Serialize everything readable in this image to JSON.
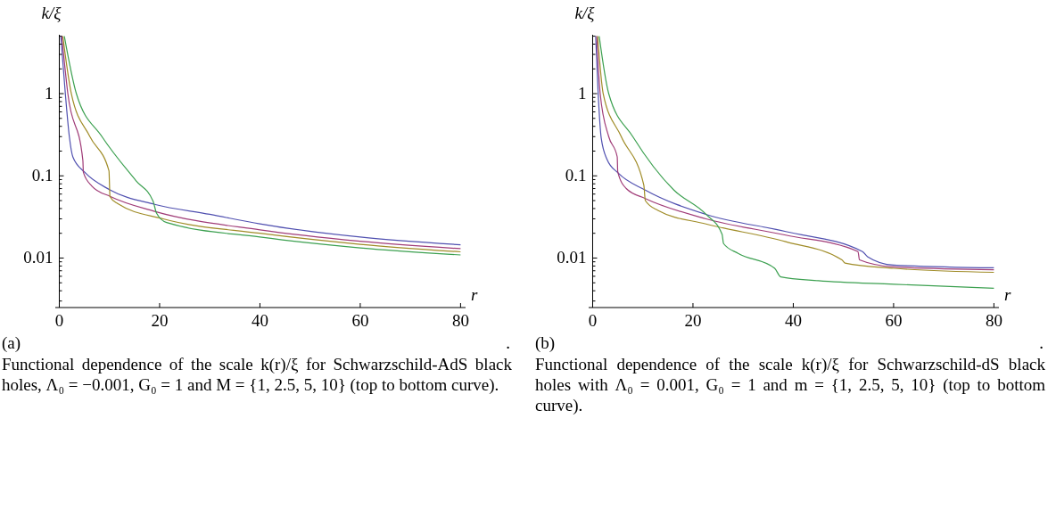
{
  "chart_data": [
    {
      "type": "line",
      "xlabel": "r",
      "ylabel": "k/ξ",
      "log": "y",
      "xlim": [
        -0.8,
        81
      ],
      "ylim": [
        0.0025,
        5.2
      ],
      "xticks": [
        0,
        20,
        40,
        60,
        80
      ],
      "yticks": [
        {
          "value": 0.003,
          "label": null
        },
        {
          "value": 0.004,
          "label": null
        },
        {
          "value": 0.005,
          "label": null
        },
        {
          "value": 0.006,
          "label": null
        },
        {
          "value": 0.007,
          "label": null
        },
        {
          "value": 0.008,
          "label": null
        },
        {
          "value": 0.009,
          "label": null
        },
        0.01,
        {
          "value": 0.02,
          "label": null
        },
        {
          "value": 0.03,
          "label": null
        },
        {
          "value": 0.04,
          "label": null
        },
        {
          "value": 0.05,
          "label": null
        },
        {
          "value": 0.06,
          "label": null
        },
        {
          "value": 0.07,
          "label": null
        },
        {
          "value": 0.08,
          "label": null
        },
        {
          "value": 0.09,
          "label": null
        },
        0.1,
        {
          "value": 0.2,
          "label": null
        },
        {
          "value": 0.3,
          "label": null
        },
        {
          "value": 0.4,
          "label": null
        },
        {
          "value": 0.5,
          "label": null
        },
        {
          "value": 0.6,
          "label": null
        },
        {
          "value": 0.7,
          "label": null
        },
        {
          "value": 0.8,
          "label": null
        },
        {
          "value": 0.9,
          "label": null
        },
        1,
        {
          "value": 2,
          "label": null
        },
        {
          "value": 3,
          "label": null
        },
        {
          "value": 4,
          "label": null
        },
        {
          "value": 5,
          "label": null
        }
      ],
      "grid": false,
      "series": [
        {
          "color": "#5050b0",
          "x": [
            0.3,
            1.2,
            2,
            2.7,
            5.1,
            10,
            19,
            30,
            40,
            60,
            80
          ],
          "values": [
            5,
            1,
            0.3,
            0.17,
            0.11,
            0.068,
            0.045,
            0.034,
            0.026,
            0.018,
            0.0145
          ]
        },
        {
          "color": "#a03c78",
          "x": [
            0.5,
            1.7,
            4.7,
            4.8,
            6.5,
            10.2,
            19,
            40,
            60,
            80
          ],
          "values": [
            5,
            1,
            0.154,
            0.11,
            0.075,
            0.056,
            0.037,
            0.022,
            0.016,
            0.013
          ]
        },
        {
          "color": "#a08c28",
          "x": [
            0.7,
            2.4,
            6.1,
            9.9,
            10.1,
            11.6,
            20.7,
            40,
            60,
            80
          ],
          "values": [
            5,
            1,
            0.3,
            0.115,
            0.056,
            0.046,
            0.03,
            0.02,
            0.0147,
            0.0119
          ]
        },
        {
          "color": "#3ca050",
          "x": [
            1,
            3.4,
            8.5,
            15.3,
            18.7,
            19.4,
            21.4,
            40,
            60,
            80
          ],
          "values": [
            5,
            1,
            0.3,
            0.087,
            0.049,
            0.035,
            0.027,
            0.018,
            0.0133,
            0.0109
          ]
        }
      ],
      "annotations": [
        "(a)",
        ".",
        "Functional dependence of the scale k(r)/ξ for Schwarzschild-AdS black holes, Λ₀ = −0.001, G₀ = 1 and M = {1, 2.5, 5, 10} (top to bottom curve)."
      ]
    },
    {
      "type": "line",
      "xlabel": "r",
      "ylabel": "k/ξ",
      "log": "y",
      "xlim": [
        -0.8,
        81
      ],
      "ylim": [
        0.0025,
        5.2
      ],
      "xticks": [
        0,
        20,
        40,
        60,
        80
      ],
      "yticks": [
        {
          "value": 0.003,
          "label": null
        },
        {
          "value": 0.004,
          "label": null
        },
        {
          "value": 0.005,
          "label": null
        },
        {
          "value": 0.006,
          "label": null
        },
        {
          "value": 0.007,
          "label": null
        },
        {
          "value": 0.008,
          "label": null
        },
        {
          "value": 0.009,
          "label": null
        },
        0.01,
        {
          "value": 0.02,
          "label": null
        },
        {
          "value": 0.03,
          "label": null
        },
        {
          "value": 0.04,
          "label": null
        },
        {
          "value": 0.05,
          "label": null
        },
        {
          "value": 0.06,
          "label": null
        },
        {
          "value": 0.07,
          "label": null
        },
        {
          "value": 0.08,
          "label": null
        },
        {
          "value": 0.09,
          "label": null
        },
        0.1,
        {
          "value": 0.2,
          "label": null
        },
        {
          "value": 0.3,
          "label": null
        },
        {
          "value": 0.4,
          "label": null
        },
        {
          "value": 0.5,
          "label": null
        },
        {
          "value": 0.6,
          "label": null
        },
        {
          "value": 0.7,
          "label": null
        },
        {
          "value": 0.8,
          "label": null
        },
        {
          "value": 0.9,
          "label": null
        },
        1,
        {
          "value": 2,
          "label": null
        },
        {
          "value": 3,
          "label": null
        },
        {
          "value": 4,
          "label": null
        },
        {
          "value": 5,
          "label": null
        }
      ],
      "grid": false,
      "series": [
        {
          "color": "#5050b0",
          "x": [
            0.6,
            1.1,
            1.7,
            2.9,
            5.1,
            10.5,
            22.6,
            38.5,
            53.8,
            54.8,
            60,
            80
          ],
          "values": [
            5,
            1,
            0.29,
            0.157,
            0.108,
            0.067,
            0.034,
            0.021,
            0.012,
            0.0104,
            0.0082,
            0.0076
          ]
        },
        {
          "color": "#a03c78",
          "x": [
            0.8,
            1.5,
            3.2,
            4.9,
            5,
            6.7,
            10.5,
            22.6,
            38.5,
            52.9,
            53.2,
            60,
            80
          ],
          "values": [
            5,
            1,
            0.3,
            0.17,
            0.112,
            0.07,
            0.053,
            0.03,
            0.019,
            0.012,
            0.0095,
            0.0078,
            0.0072
          ]
        },
        {
          "color": "#a08c28",
          "x": [
            1,
            2.1,
            5.7,
            10.2,
            10.5,
            13,
            22.6,
            38.5,
            49.7,
            50.3,
            60,
            80
          ],
          "values": [
            5,
            1,
            0.3,
            0.077,
            0.05,
            0.038,
            0.026,
            0.0158,
            0.0095,
            0.0087,
            0.0075,
            0.0067
          ]
        },
        {
          "color": "#3ca050",
          "x": [
            1.3,
            3.2,
            8,
            16.2,
            22.6,
            25.8,
            26.1,
            29,
            36.3,
            37.5,
            45,
            60,
            80
          ],
          "values": [
            5,
            1,
            0.3,
            0.067,
            0.034,
            0.0195,
            0.015,
            0.0114,
            0.0075,
            0.0059,
            0.0053,
            0.0048,
            0.0043
          ]
        }
      ],
      "annotations": [
        "(b)",
        ".",
        "Functional dependence of the scale k(r)/ξ for Schwarzschild-dS black holes with Λ₀ = 0.001, G₀ = 1 and m = {1, 2.5, 5, 10} (top to bottom curve)."
      ]
    }
  ]
}
